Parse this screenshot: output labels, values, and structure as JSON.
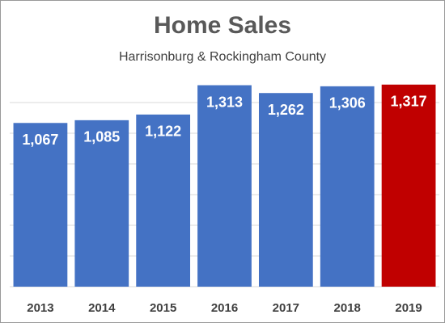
{
  "chart_data": {
    "type": "bar",
    "title": "Home Sales",
    "subtitle": "Harrisonburg & Rockingham County",
    "categories": [
      "2013",
      "2014",
      "2015",
      "2016",
      "2017",
      "2018",
      "2019"
    ],
    "values": [
      1067,
      1085,
      1122,
      1313,
      1262,
      1306,
      1317
    ],
    "value_labels": [
      "1,067",
      "1,085",
      "1,122",
      "1,313",
      "1,262",
      "1,306",
      "1,317"
    ],
    "colors": [
      "#4472c4",
      "#4472c4",
      "#4472c4",
      "#4472c4",
      "#4472c4",
      "#4472c4",
      "#c00000"
    ],
    "ylim": [
      0,
      1400
    ],
    "yticks": [
      0,
      200,
      400,
      600,
      800,
      1000,
      1200
    ],
    "grid": true
  }
}
